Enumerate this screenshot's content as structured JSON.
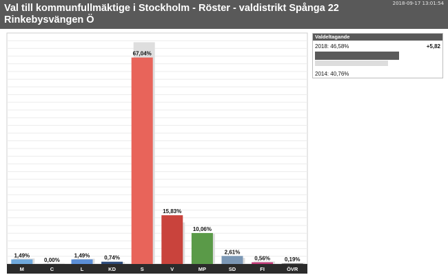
{
  "header": {
    "title": "Val till kommunfullmäktige i Stockholm - Röster - valdistrikt Spånga 22 Rinkebysvängen Ö",
    "timestamp": "2018-09-17 13:01:54"
  },
  "turnout": {
    "heading": "Valdeltagande",
    "current_label": "2018: 46,58%",
    "previous_label": "2014: 40,76%",
    "change": "+5,82",
    "current_value": 46.58,
    "previous_value": 40.76
  },
  "chart_data": {
    "type": "bar",
    "categories": [
      "M",
      "C",
      "L",
      "KD",
      "S",
      "V",
      "MP",
      "SD",
      "FI",
      "ÖVR"
    ],
    "series": [
      {
        "values": [
          1.49,
          0.0,
          1.49,
          0.74,
          67.04,
          15.83,
          10.06,
          2.61,
          0.56,
          0.19
        ]
      },
      {
        "values": [
          1.8,
          0.3,
          1.7,
          0.6,
          72.0,
          13.5,
          9.8,
          2.0,
          0.8,
          0.4
        ]
      }
    ],
    "data_labels": [
      "1,49%",
      "0,00%",
      "1,49%",
      "0,74%",
      "67,04%",
      "15,83%",
      "10,06%",
      "2,61%",
      "0,56%",
      "0,19%"
    ],
    "colors": [
      "#6fa8dc",
      "#5cb85c",
      "#5b8ed6",
      "#2c4a7a",
      "#e8645a",
      "#c9433c",
      "#5a9a48",
      "#7b97b5",
      "#c43c7a",
      "#777777"
    ],
    "ylim": [
      0,
      75
    ],
    "grid": true,
    "title": "",
    "xlabel": "",
    "ylabel": ""
  }
}
